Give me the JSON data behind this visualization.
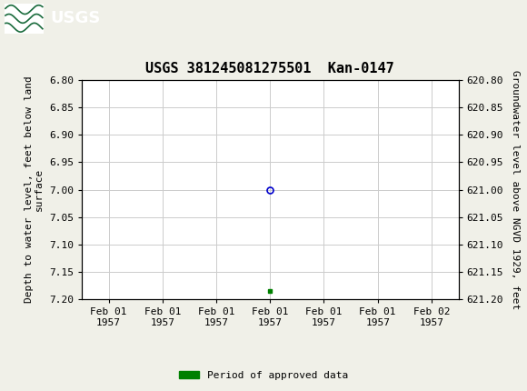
{
  "title": "USGS 381245081275501  Kan-0147",
  "ylabel_left": "Depth to water level, feet below land\nsurface",
  "ylabel_right": "Groundwater level above NGVD 1929, feet",
  "ylim_left": [
    6.8,
    7.2
  ],
  "ylim_right": [
    620.8,
    621.2
  ],
  "yticks_left": [
    6.8,
    6.85,
    6.9,
    6.95,
    7.0,
    7.05,
    7.1,
    7.15,
    7.2
  ],
  "yticks_right": [
    620.8,
    620.85,
    620.9,
    620.95,
    621.0,
    621.05,
    621.1,
    621.15,
    621.2
  ],
  "data_point_x": 3.0,
  "data_point_y_depth": 7.0,
  "green_marker_x": 3.0,
  "green_marker_y_depth": 7.185,
  "x_tick_labels": [
    "Feb 01\n1957",
    "Feb 01\n1957",
    "Feb 01\n1957",
    "Feb 01\n1957",
    "Feb 01\n1957",
    "Feb 01\n1957",
    "Feb 02\n1957"
  ],
  "x_tick_positions": [
    0,
    1,
    2,
    3,
    4,
    5,
    6
  ],
  "xlim": [
    -0.5,
    6.5
  ],
  "grid_color": "#cccccc",
  "background_color": "#f0f0e8",
  "plot_bg_color": "#ffffff",
  "header_color": "#1a6b3c",
  "title_fontsize": 11,
  "tick_fontsize": 8,
  "ylabel_fontsize": 8,
  "legend_label": "Period of approved data",
  "legend_color": "#008000",
  "point_color_face": "none",
  "point_color_edge": "#0000cc",
  "point_marker": "o",
  "point_size": 5
}
